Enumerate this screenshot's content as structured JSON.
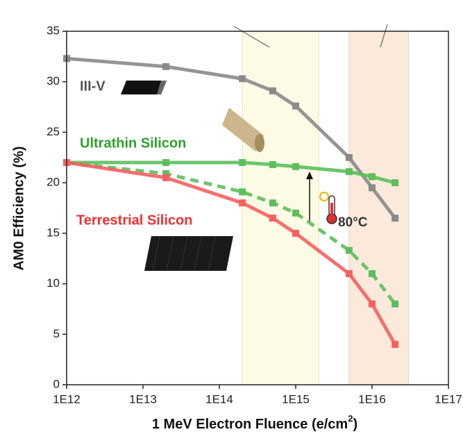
{
  "chart_data": {
    "type": "line",
    "xscale": "log",
    "xlim": [
      1000000000000.0,
      1e+17
    ],
    "ylim": [
      0,
      35
    ],
    "xticks": [
      {
        "value": 1000000000000.0,
        "label": "1E12"
      },
      {
        "value": 10000000000000.0,
        "label": "1E13"
      },
      {
        "value": 100000000000000.0,
        "label": "1E14"
      },
      {
        "value": 1000000000000000.0,
        "label": "1E15"
      },
      {
        "value": 1e+16,
        "label": "1E16"
      },
      {
        "value": 1e+17,
        "label": "1E17"
      }
    ],
    "yticks": [
      0,
      5,
      10,
      15,
      20,
      25,
      30,
      35
    ],
    "xlabel": {
      "text": "1 MeV Electron Fluence (e/cm",
      "sup": "2",
      "end": ")"
    },
    "ylabel": "AM0 Efficiency (%)",
    "x": [
      1000000000000.0,
      20000000000000.0,
      200000000000000.0,
      500000000000000.0,
      1000000000000000.0,
      5000000000000000.0,
      1e+16,
      2e+16
    ],
    "series": [
      {
        "name": "III-V",
        "color": "#8a8a8a",
        "label_color": "#555555",
        "dash": false,
        "values": [
          32.3,
          31.5,
          30.3,
          29.1,
          27.6,
          22.5,
          19.5,
          16.5
        ]
      },
      {
        "name": "Ultrathin Silicon",
        "color": "#5cbf5c",
        "label_color": "#2ea02e",
        "dash": false,
        "values": [
          22.0,
          22.0,
          22.0,
          21.8,
          21.6,
          21.1,
          20.6,
          20.0
        ]
      },
      {
        "color": "#5cbf5c",
        "dash": true,
        "values": [
          22.0,
          20.9,
          19.1,
          18.0,
          17.0,
          13.3,
          11.0,
          8.0
        ]
      },
      {
        "name": "Terrestrial Silicon",
        "color": "#f46060",
        "label_color": "#f03030",
        "dash": false,
        "values": [
          22.0,
          20.5,
          18.0,
          16.5,
          15.0,
          11.0,
          8.0,
          4.0
        ]
      }
    ],
    "shaded_regions": [
      {
        "x": [
          200000000000000.0,
          2000000000000000.0
        ],
        "color": "#fdfbe6",
        "edge": "#e6e2b4"
      },
      {
        "x": [
          5000000000000000.0,
          3e+16
        ],
        "color": "#fbeadb",
        "edge": "#ead3bf"
      }
    ],
    "annotation": "80°C"
  }
}
